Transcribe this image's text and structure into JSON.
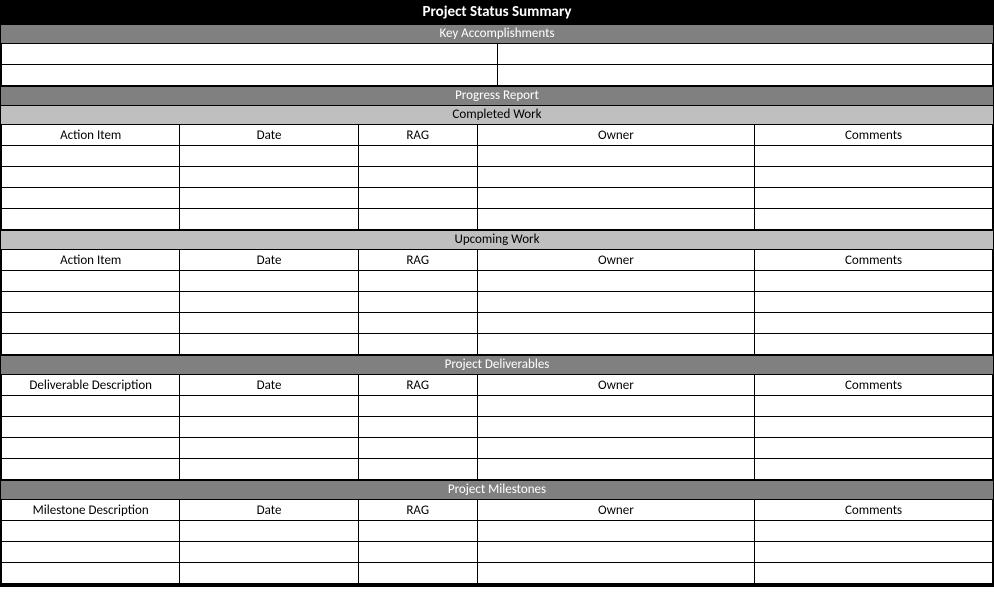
{
  "title": "Project Status Summary",
  "colors": {
    "title_bg": "#000000",
    "title_fg": "#ffffff",
    "section_bg": "#808080",
    "section_fg": "#ffffff",
    "subsection_bg": "#bfbfbf",
    "subsection_fg": "#000000",
    "cell_bg": "#ffffff",
    "border": "#000000"
  },
  "key_accomplishments": {
    "heading": "Key Accomplishments",
    "columns": 2,
    "rows": [
      [
        "",
        ""
      ],
      [
        "",
        ""
      ]
    ]
  },
  "progress_report": {
    "heading": "Progress Report",
    "completed_work": {
      "heading": "Completed Work",
      "columns": [
        "Action Item",
        "Date",
        "RAG",
        "Owner",
        "Comments"
      ],
      "rows": [
        [
          "",
          "",
          "",
          "",
          ""
        ],
        [
          "",
          "",
          "",
          "",
          ""
        ],
        [
          "",
          "",
          "",
          "",
          ""
        ],
        [
          "",
          "",
          "",
          "",
          ""
        ]
      ]
    },
    "upcoming_work": {
      "heading": "Upcoming Work",
      "columns": [
        "Action Item",
        "Date",
        "RAG",
        "Owner",
        "Comments"
      ],
      "rows": [
        [
          "",
          "",
          "",
          "",
          ""
        ],
        [
          "",
          "",
          "",
          "",
          ""
        ],
        [
          "",
          "",
          "",
          "",
          ""
        ],
        [
          "",
          "",
          "",
          "",
          ""
        ]
      ]
    }
  },
  "project_deliverables": {
    "heading": "Project Deliverables",
    "columns": [
      "Deliverable Description",
      "Date",
      "RAG",
      "Owner",
      "Comments"
    ],
    "rows": [
      [
        "",
        "",
        "",
        "",
        ""
      ],
      [
        "",
        "",
        "",
        "",
        ""
      ],
      [
        "",
        "",
        "",
        "",
        ""
      ],
      [
        "",
        "",
        "",
        "",
        ""
      ]
    ]
  },
  "project_milestones": {
    "heading": "Project Milestones",
    "columns": [
      "Milestone Description",
      "Date",
      "RAG",
      "Owner",
      "Comments"
    ],
    "rows": [
      [
        "",
        "",
        "",
        "",
        ""
      ],
      [
        "",
        "",
        "",
        "",
        ""
      ],
      [
        "",
        "",
        "",
        "",
        ""
      ]
    ]
  },
  "column_widths_pct": [
    18,
    18,
    12,
    28,
    24
  ]
}
